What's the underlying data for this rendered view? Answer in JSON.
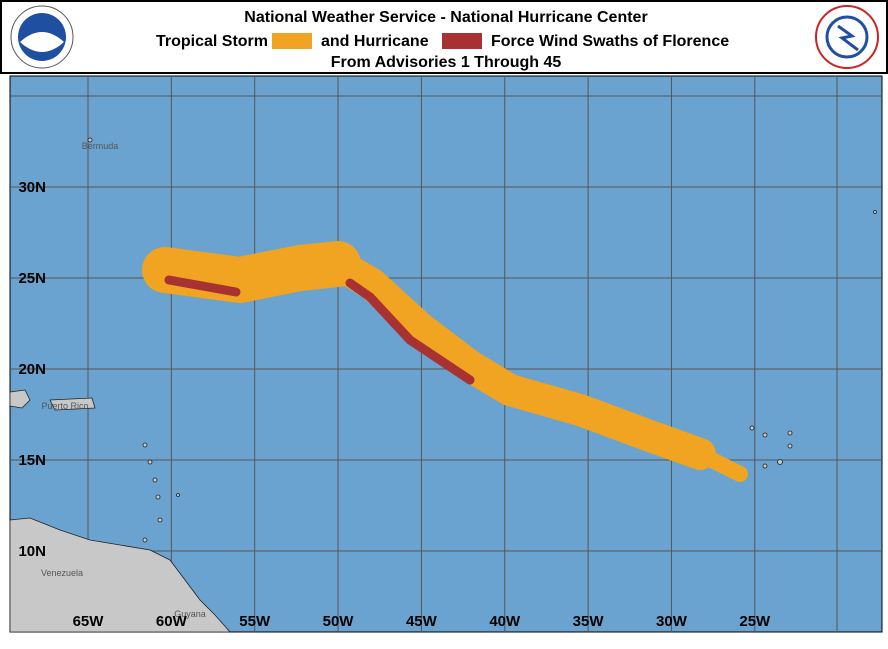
{
  "header": {
    "line1": "National Weather Service - National Hurricane Center",
    "legend": [
      {
        "label": "Tropical Storm",
        "color": "#f0a422"
      },
      {
        "label": "and Hurricane",
        "color": "#a83232"
      }
    ],
    "legend_suffix": "Force Wind Swaths of Florence",
    "line3": "From Advisories 1 Through 45"
  },
  "map": {
    "xticks": [
      {
        "value": -65,
        "label": "65W"
      },
      {
        "value": -60,
        "label": "60W"
      },
      {
        "value": -55,
        "label": "55W"
      },
      {
        "value": -50,
        "label": "50W"
      },
      {
        "value": -45,
        "label": "45W"
      },
      {
        "value": -40,
        "label": "40W"
      },
      {
        "value": -35,
        "label": "35W"
      },
      {
        "value": -30,
        "label": "30W"
      },
      {
        "value": -25,
        "label": "25W"
      }
    ],
    "yticks": [
      {
        "value": 30,
        "label": "30N"
      },
      {
        "value": 25,
        "label": "25N"
      },
      {
        "value": 20,
        "label": "20N"
      },
      {
        "value": 15,
        "label": "15N"
      },
      {
        "value": 10,
        "label": "10N"
      }
    ],
    "places": [
      "Bermuda",
      "Puerto Rico",
      "Venezuela",
      "Guyana"
    ]
  }
}
